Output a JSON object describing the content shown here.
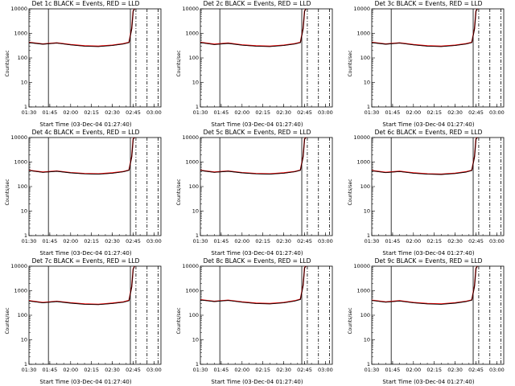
{
  "chart_data": [
    {
      "type": "line",
      "title": "Det 1c BLACK = Events, RED = LLD",
      "xlabel": "Start Time (03-Dec-04 01:27:40)",
      "ylabel": "Counts/sec",
      "log_y": true,
      "ylim": [
        1,
        10000
      ],
      "x_ticks": [
        "01:30",
        "01:45",
        "02:00",
        "02:15",
        "02:30",
        "02:45",
        "03:00"
      ],
      "y_ticks": [
        "1",
        "10",
        "100",
        "1000",
        "10000"
      ],
      "x": [
        "01:30",
        "01:40",
        "01:50",
        "02:00",
        "02:10",
        "02:20",
        "02:30",
        "02:38",
        "02:42",
        "02:44",
        "02:45",
        "02:46"
      ],
      "series": [
        {
          "name": "Events",
          "color": "#000000",
          "values": [
            420,
            360,
            400,
            340,
            300,
            290,
            320,
            370,
            420,
            1500,
            8000,
            10000
          ]
        },
        {
          "name": "LLD",
          "color": "#ff0000",
          "values": [
            430,
            370,
            410,
            350,
            310,
            300,
            330,
            380,
            430,
            1600,
            8200,
            10000
          ]
        }
      ],
      "vlines_solid": [
        "01:44",
        "02:43"
      ],
      "vlines_dashed": [
        "02:47",
        "02:55",
        "03:03"
      ],
      "grid": false
    },
    {
      "type": "line",
      "title": "Det 2c BLACK = Events, RED = LLD",
      "xlabel": "Start Time (03-Dec-04 01:27:40)",
      "ylabel": "Counts/sec",
      "log_y": true,
      "ylim": [
        1,
        10000
      ],
      "x_ticks": [
        "01:30",
        "01:45",
        "02:00",
        "02:15",
        "02:30",
        "02:45",
        "03:00"
      ],
      "y_ticks": [
        "1",
        "10",
        "100",
        "1000",
        "10000"
      ],
      "x": [
        "01:30",
        "01:40",
        "01:50",
        "02:00",
        "02:10",
        "02:20",
        "02:30",
        "02:38",
        "02:42",
        "02:44",
        "02:45",
        "02:46"
      ],
      "series": [
        {
          "name": "Events",
          "color": "#000000",
          "values": [
            420,
            350,
            390,
            330,
            300,
            290,
            320,
            370,
            420,
            1500,
            8000,
            10000
          ]
        },
        {
          "name": "LLD",
          "color": "#ff0000",
          "values": [
            430,
            360,
            400,
            340,
            310,
            300,
            330,
            380,
            430,
            1600,
            8200,
            10000
          ]
        }
      ],
      "vlines_solid": [
        "01:44",
        "02:43"
      ],
      "vlines_dashed": [
        "02:47",
        "02:55",
        "03:03"
      ],
      "grid": false
    },
    {
      "type": "line",
      "title": "Det 3c BLACK = Events, RED = LLD",
      "xlabel": "Start Time (03-Dec-04 01:27:40)",
      "ylabel": "Counts/sec",
      "log_y": true,
      "ylim": [
        1,
        10000
      ],
      "x_ticks": [
        "01:30",
        "01:45",
        "02:00",
        "02:15",
        "02:30",
        "02:45",
        "03:00"
      ],
      "y_ticks": [
        "1",
        "10",
        "100",
        "1000",
        "10000"
      ],
      "x": [
        "01:30",
        "01:40",
        "01:50",
        "02:00",
        "02:10",
        "02:20",
        "02:30",
        "02:38",
        "02:42",
        "02:44",
        "02:45",
        "02:46"
      ],
      "series": [
        {
          "name": "Events",
          "color": "#000000",
          "values": [
            420,
            360,
            400,
            340,
            300,
            290,
            320,
            370,
            420,
            1500,
            8000,
            10000
          ]
        },
        {
          "name": "LLD",
          "color": "#ff0000",
          "values": [
            430,
            370,
            410,
            350,
            310,
            300,
            330,
            380,
            430,
            1600,
            8200,
            10000
          ]
        }
      ],
      "vlines_solid": [
        "01:44",
        "02:43"
      ],
      "vlines_dashed": [
        "02:47",
        "02:55",
        "03:03"
      ],
      "grid": false
    },
    {
      "type": "line",
      "title": "Det 4c BLACK = Events, RED = LLD",
      "xlabel": "Start Time (03-Dec-04 01:27:40)",
      "ylabel": "Counts/sec",
      "log_y": true,
      "ylim": [
        1,
        10000
      ],
      "x_ticks": [
        "01:30",
        "01:45",
        "02:00",
        "02:15",
        "02:30",
        "02:45",
        "03:00"
      ],
      "y_ticks": [
        "1",
        "10",
        "100",
        "1000",
        "10000"
      ],
      "x": [
        "01:30",
        "01:40",
        "01:50",
        "02:00",
        "02:10",
        "02:20",
        "02:30",
        "02:38",
        "02:42",
        "02:44",
        "02:45",
        "02:46"
      ],
      "series": [
        {
          "name": "Events",
          "color": "#000000",
          "values": [
            450,
            380,
            420,
            360,
            330,
            320,
            350,
            400,
            460,
            1600,
            8500,
            10000
          ]
        },
        {
          "name": "LLD",
          "color": "#ff0000",
          "values": [
            460,
            390,
            430,
            370,
            340,
            330,
            360,
            410,
            470,
            1700,
            8700,
            10000
          ]
        }
      ],
      "vlines_solid": [
        "01:44",
        "02:43"
      ],
      "vlines_dashed": [
        "02:47",
        "02:55",
        "03:03"
      ],
      "grid": false
    },
    {
      "type": "line",
      "title": "Det 5c BLACK = Events, RED = LLD",
      "xlabel": "Start Time (03-Dec-04 01:27:40)",
      "ylabel": "Counts/sec",
      "log_y": true,
      "ylim": [
        1,
        10000
      ],
      "x_ticks": [
        "01:30",
        "01:45",
        "02:00",
        "02:15",
        "02:30",
        "02:45",
        "03:00"
      ],
      "y_ticks": [
        "1",
        "10",
        "100",
        "1000",
        "10000"
      ],
      "x": [
        "01:30",
        "01:40",
        "01:50",
        "02:00",
        "02:10",
        "02:20",
        "02:30",
        "02:38",
        "02:42",
        "02:44",
        "02:45",
        "02:46"
      ],
      "series": [
        {
          "name": "Events",
          "color": "#000000",
          "values": [
            450,
            380,
            420,
            360,
            330,
            320,
            350,
            400,
            460,
            1600,
            8500,
            10000
          ]
        },
        {
          "name": "LLD",
          "color": "#ff0000",
          "values": [
            460,
            390,
            430,
            370,
            340,
            330,
            360,
            410,
            470,
            1700,
            8700,
            10000
          ]
        }
      ],
      "vlines_solid": [
        "01:44",
        "02:43"
      ],
      "vlines_dashed": [
        "02:47",
        "02:55",
        "03:03"
      ],
      "grid": false
    },
    {
      "type": "line",
      "title": "Det 6c BLACK = Events, RED = LLD",
      "xlabel": "Start Time (03-Dec-04 01:27:40)",
      "ylabel": "Counts/sec",
      "log_y": true,
      "ylim": [
        1,
        10000
      ],
      "x_ticks": [
        "01:30",
        "01:45",
        "02:00",
        "02:15",
        "02:30",
        "02:45",
        "03:00"
      ],
      "y_ticks": [
        "1",
        "10",
        "100",
        "1000",
        "10000"
      ],
      "x": [
        "01:30",
        "01:40",
        "01:50",
        "02:00",
        "02:10",
        "02:20",
        "02:30",
        "02:38",
        "02:42",
        "02:44",
        "02:45",
        "02:46"
      ],
      "series": [
        {
          "name": "Events",
          "color": "#000000",
          "values": [
            440,
            370,
            410,
            350,
            320,
            310,
            340,
            390,
            450,
            1600,
            8500,
            10000
          ]
        },
        {
          "name": "LLD",
          "color": "#ff0000",
          "values": [
            450,
            380,
            420,
            360,
            330,
            320,
            350,
            400,
            460,
            1700,
            8700,
            10000
          ]
        }
      ],
      "vlines_solid": [
        "01:44",
        "02:43"
      ],
      "vlines_dashed": [
        "02:47",
        "02:55",
        "03:03"
      ],
      "grid": false
    },
    {
      "type": "line",
      "title": "Det 7c BLACK = Events, RED = LLD",
      "xlabel": "Start Time (03-Dec-04 01:27:40)",
      "ylabel": "Counts/sec",
      "log_y": true,
      "ylim": [
        1,
        10000
      ],
      "x_ticks": [
        "01:30",
        "01:45",
        "02:00",
        "02:15",
        "02:30",
        "02:45",
        "03:00"
      ],
      "y_ticks": [
        "1",
        "10",
        "100",
        "1000",
        "10000"
      ],
      "x": [
        "01:30",
        "01:40",
        "01:50",
        "02:00",
        "02:10",
        "02:20",
        "02:30",
        "02:38",
        "02:42",
        "02:44",
        "02:45",
        "02:46"
      ],
      "series": [
        {
          "name": "Events",
          "color": "#000000",
          "values": [
            380,
            320,
            360,
            310,
            280,
            270,
            300,
            340,
            390,
            1400,
            7500,
            10000
          ]
        },
        {
          "name": "LLD",
          "color": "#ff0000",
          "values": [
            390,
            330,
            370,
            320,
            290,
            280,
            310,
            350,
            400,
            1500,
            7700,
            10000
          ]
        }
      ],
      "vlines_solid": [
        "01:44",
        "02:43"
      ],
      "vlines_dashed": [
        "02:47",
        "02:55",
        "03:03"
      ],
      "grid": false
    },
    {
      "type": "line",
      "title": "Det 8c BLACK = Events, RED = LLD",
      "xlabel": "Start Time (03-Dec-04 01:27:40)",
      "ylabel": "Counts/sec",
      "log_y": true,
      "ylim": [
        1,
        10000
      ],
      "x_ticks": [
        "01:30",
        "01:45",
        "02:00",
        "02:15",
        "02:30",
        "02:45",
        "03:00"
      ],
      "y_ticks": [
        "1",
        "10",
        "100",
        "1000",
        "10000"
      ],
      "x": [
        "01:30",
        "01:40",
        "01:50",
        "02:00",
        "02:10",
        "02:20",
        "02:30",
        "02:38",
        "02:42",
        "02:44",
        "02:45",
        "02:46"
      ],
      "series": [
        {
          "name": "Events",
          "color": "#000000",
          "values": [
            420,
            360,
            400,
            340,
            300,
            290,
            320,
            380,
            440,
            1600,
            8500,
            10000
          ]
        },
        {
          "name": "LLD",
          "color": "#ff0000",
          "values": [
            430,
            370,
            410,
            350,
            310,
            300,
            330,
            390,
            450,
            1700,
            8700,
            10000
          ]
        }
      ],
      "vlines_solid": [
        "01:44",
        "02:43"
      ],
      "vlines_dashed": [
        "02:47",
        "02:55",
        "03:03"
      ],
      "grid": false
    },
    {
      "type": "line",
      "title": "Det 9c BLACK = Events, RED = LLD",
      "xlabel": "Start Time (03-Dec-04 01:27:40)",
      "ylabel": "Counts/sec",
      "log_y": true,
      "ylim": [
        1,
        10000
      ],
      "x_ticks": [
        "01:30",
        "01:45",
        "02:00",
        "02:15",
        "02:30",
        "02:45",
        "03:00"
      ],
      "y_ticks": [
        "1",
        "10",
        "100",
        "1000",
        "10000"
      ],
      "x": [
        "01:30",
        "01:40",
        "01:50",
        "02:00",
        "02:10",
        "02:20",
        "02:30",
        "02:38",
        "02:42",
        "02:44",
        "02:45",
        "02:46"
      ],
      "series": [
        {
          "name": "Events",
          "color": "#000000",
          "values": [
            400,
            340,
            380,
            320,
            290,
            280,
            310,
            360,
            410,
            1500,
            8000,
            10000
          ]
        },
        {
          "name": "LLD",
          "color": "#ff0000",
          "values": [
            410,
            350,
            390,
            330,
            300,
            290,
            320,
            370,
            420,
            1600,
            8200,
            10000
          ]
        }
      ],
      "vlines_solid": [
        "01:44",
        "02:43"
      ],
      "vlines_dashed": [
        "02:47",
        "02:55",
        "03:03"
      ],
      "grid": false
    }
  ]
}
